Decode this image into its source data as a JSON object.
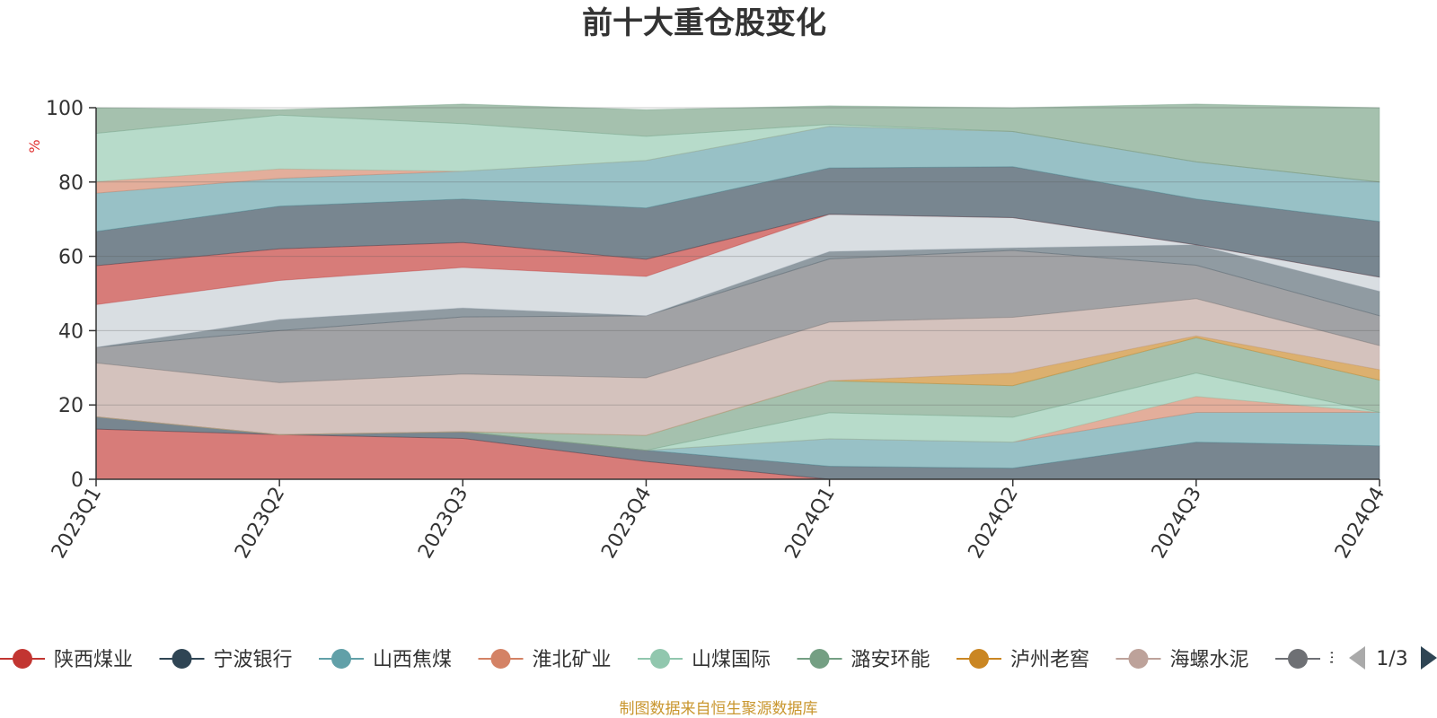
{
  "chart_data": {
    "type": "area",
    "stacked": true,
    "title": "前十大重仓股变化",
    "ylabel": "%",
    "ylim": [
      0,
      100
    ],
    "yticks": [
      0,
      20,
      40,
      60,
      80,
      100
    ],
    "categories": [
      "2023Q1",
      "2023Q2",
      "2023Q3",
      "2023Q4",
      "2024Q1",
      "2024Q2",
      "2024Q3",
      "2024Q4"
    ],
    "series": [
      {
        "name": "陕西煤业",
        "color": "#c23531",
        "values": [
          13.5,
          12,
          11,
          4.8,
          0,
          0,
          0,
          0
        ]
      },
      {
        "name": "宁波银行",
        "color": "#2f4554",
        "values": [
          3.3,
          0,
          1.8,
          3,
          3.5,
          3,
          10,
          9
        ]
      },
      {
        "name": "山西焦煤",
        "color": "#61a0a8",
        "values": [
          0,
          0,
          0,
          0,
          7.4,
          7,
          8,
          9
        ]
      },
      {
        "name": "淮北矿业",
        "color": "#d48265",
        "values": [
          0,
          0,
          0,
          0,
          0,
          0,
          4.3,
          0
        ]
      },
      {
        "name": "山煤国际",
        "color": "#91c7ae",
        "values": [
          0,
          0,
          0,
          0,
          7,
          6.7,
          6.3,
          0
        ]
      },
      {
        "name": "潞安环能",
        "color": "#749f83",
        "values": [
          0,
          0,
          0,
          4,
          8.6,
          8.5,
          9.5,
          8.7
        ]
      },
      {
        "name": "泸州老窖",
        "color": "#ca8622",
        "values": [
          0,
          0,
          0,
          0,
          0,
          3.4,
          0.5,
          2.8
        ]
      },
      {
        "name": "海螺水泥",
        "color": "#bda29a",
        "values": [
          14.5,
          14,
          15.5,
          15.5,
          15.8,
          15,
          10,
          6.5
        ]
      },
      {
        "name": "",
        "color": "#6e7074",
        "values": [
          4.2,
          14,
          15.4,
          16.7,
          17,
          18,
          9,
          8
        ]
      },
      {
        "name": "",
        "color": "#546570",
        "values": [
          0,
          3,
          2.4,
          0,
          2,
          0.7,
          5.5,
          6.6
        ]
      },
      {
        "name": "",
        "color": "#c4ccd3",
        "values": [
          11.5,
          10.5,
          10.9,
          10.6,
          10,
          8.1,
          0,
          3.8
        ]
      },
      {
        "name": "",
        "color": "#c23531",
        "values": [
          10.5,
          8.5,
          6.7,
          4.6,
          0,
          0,
          0,
          0
        ]
      },
      {
        "name": "",
        "color": "#2f4554",
        "values": [
          9.2,
          11.5,
          11.7,
          13.8,
          12.5,
          13.7,
          12.3,
          15
        ]
      },
      {
        "name": "",
        "color": "#61a0a8",
        "values": [
          10.3,
          7.5,
          7.5,
          12.8,
          11.2,
          9.5,
          10,
          10.6
        ]
      },
      {
        "name": "",
        "color": "#d48265",
        "values": [
          3.1,
          2.5,
          0,
          0,
          0,
          0,
          0,
          0
        ]
      },
      {
        "name": "",
        "color": "#91c7ae",
        "values": [
          13,
          14.5,
          12.8,
          6.5,
          0.5,
          0,
          0,
          0
        ]
      },
      {
        "name": "",
        "color": "#749f83",
        "values": [
          6.9,
          1.5,
          5.3,
          7.2,
          5,
          6.4,
          15.6,
          20
        ]
      }
    ],
    "legend": {
      "position": "bottom",
      "page": "1/3"
    },
    "footer": "制图数据来自恒生聚源数据库"
  },
  "legend_items": [
    {
      "name": "陕西煤业",
      "color": "#c23531"
    },
    {
      "name": "宁波银行",
      "color": "#2f4554"
    },
    {
      "name": "山西焦煤",
      "color": "#61a0a8"
    },
    {
      "name": "淮北矿业",
      "color": "#d48265"
    },
    {
      "name": "山煤国际",
      "color": "#91c7ae"
    },
    {
      "name": "潞安环能",
      "color": "#749f83"
    },
    {
      "name": "泸州老窖",
      "color": "#ca8622"
    },
    {
      "name": "海螺水泥",
      "color": "#bda29a"
    },
    {
      "name": "非",
      "color": "#6e7074"
    }
  ]
}
